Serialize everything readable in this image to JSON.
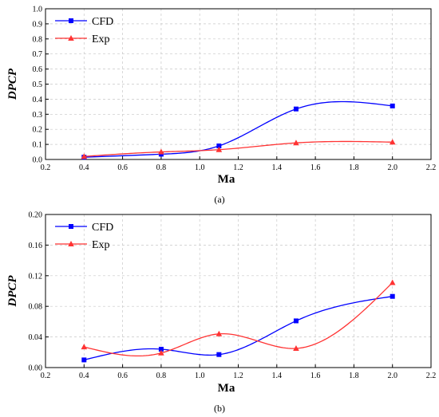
{
  "chart_data": [
    {
      "type": "line",
      "panel_label": "(a)",
      "xlabel": "Ma",
      "ylabel": "DPCP",
      "xlim": [
        0.2,
        2.2
      ],
      "ylim": [
        0.0,
        1.0
      ],
      "xticks": [
        "0.2",
        "0.4",
        "0.6",
        "0.8",
        "1.0",
        "1.2",
        "1.4",
        "1.6",
        "1.8",
        "2.0",
        "2.2"
      ],
      "yticks": [
        "0.0",
        "0.1",
        "0.2",
        "0.3",
        "0.4",
        "0.5",
        "0.6",
        "0.7",
        "0.8",
        "0.9",
        "1.0"
      ],
      "grid": true,
      "legend_position": "top-left",
      "x": [
        0.4,
        0.8,
        1.1,
        1.5,
        2.0
      ],
      "series": [
        {
          "name": "CFD",
          "color": "#0000ff",
          "marker": "square",
          "values": [
            0.015,
            0.035,
            0.09,
            0.335,
            0.355
          ]
        },
        {
          "name": "Exp",
          "color": "#ff3333",
          "marker": "triangle",
          "values": [
            0.02,
            0.05,
            0.065,
            0.11,
            0.115
          ]
        }
      ]
    },
    {
      "type": "line",
      "panel_label": "(b)",
      "xlabel": "Ma",
      "ylabel": "DPCP",
      "xlim": [
        0.2,
        2.2
      ],
      "ylim": [
        0.0,
        0.2
      ],
      "xticks": [
        "0.2",
        "0.4",
        "0.6",
        "0.8",
        "1.0",
        "1.2",
        "1.4",
        "1.6",
        "1.8",
        "2.0",
        "2.2"
      ],
      "yticks": [
        "0.00",
        "0.04",
        "0.08",
        "0.12",
        "0.16",
        "0.20"
      ],
      "grid": true,
      "legend_position": "top-left",
      "x": [
        0.4,
        0.8,
        1.1,
        1.5,
        2.0
      ],
      "series": [
        {
          "name": "CFD",
          "color": "#0000ff",
          "marker": "square",
          "values": [
            0.01,
            0.024,
            0.017,
            0.061,
            0.093
          ]
        },
        {
          "name": "Exp",
          "color": "#ff3333",
          "marker": "triangle",
          "values": [
            0.027,
            0.019,
            0.044,
            0.025,
            0.111
          ]
        }
      ]
    }
  ]
}
